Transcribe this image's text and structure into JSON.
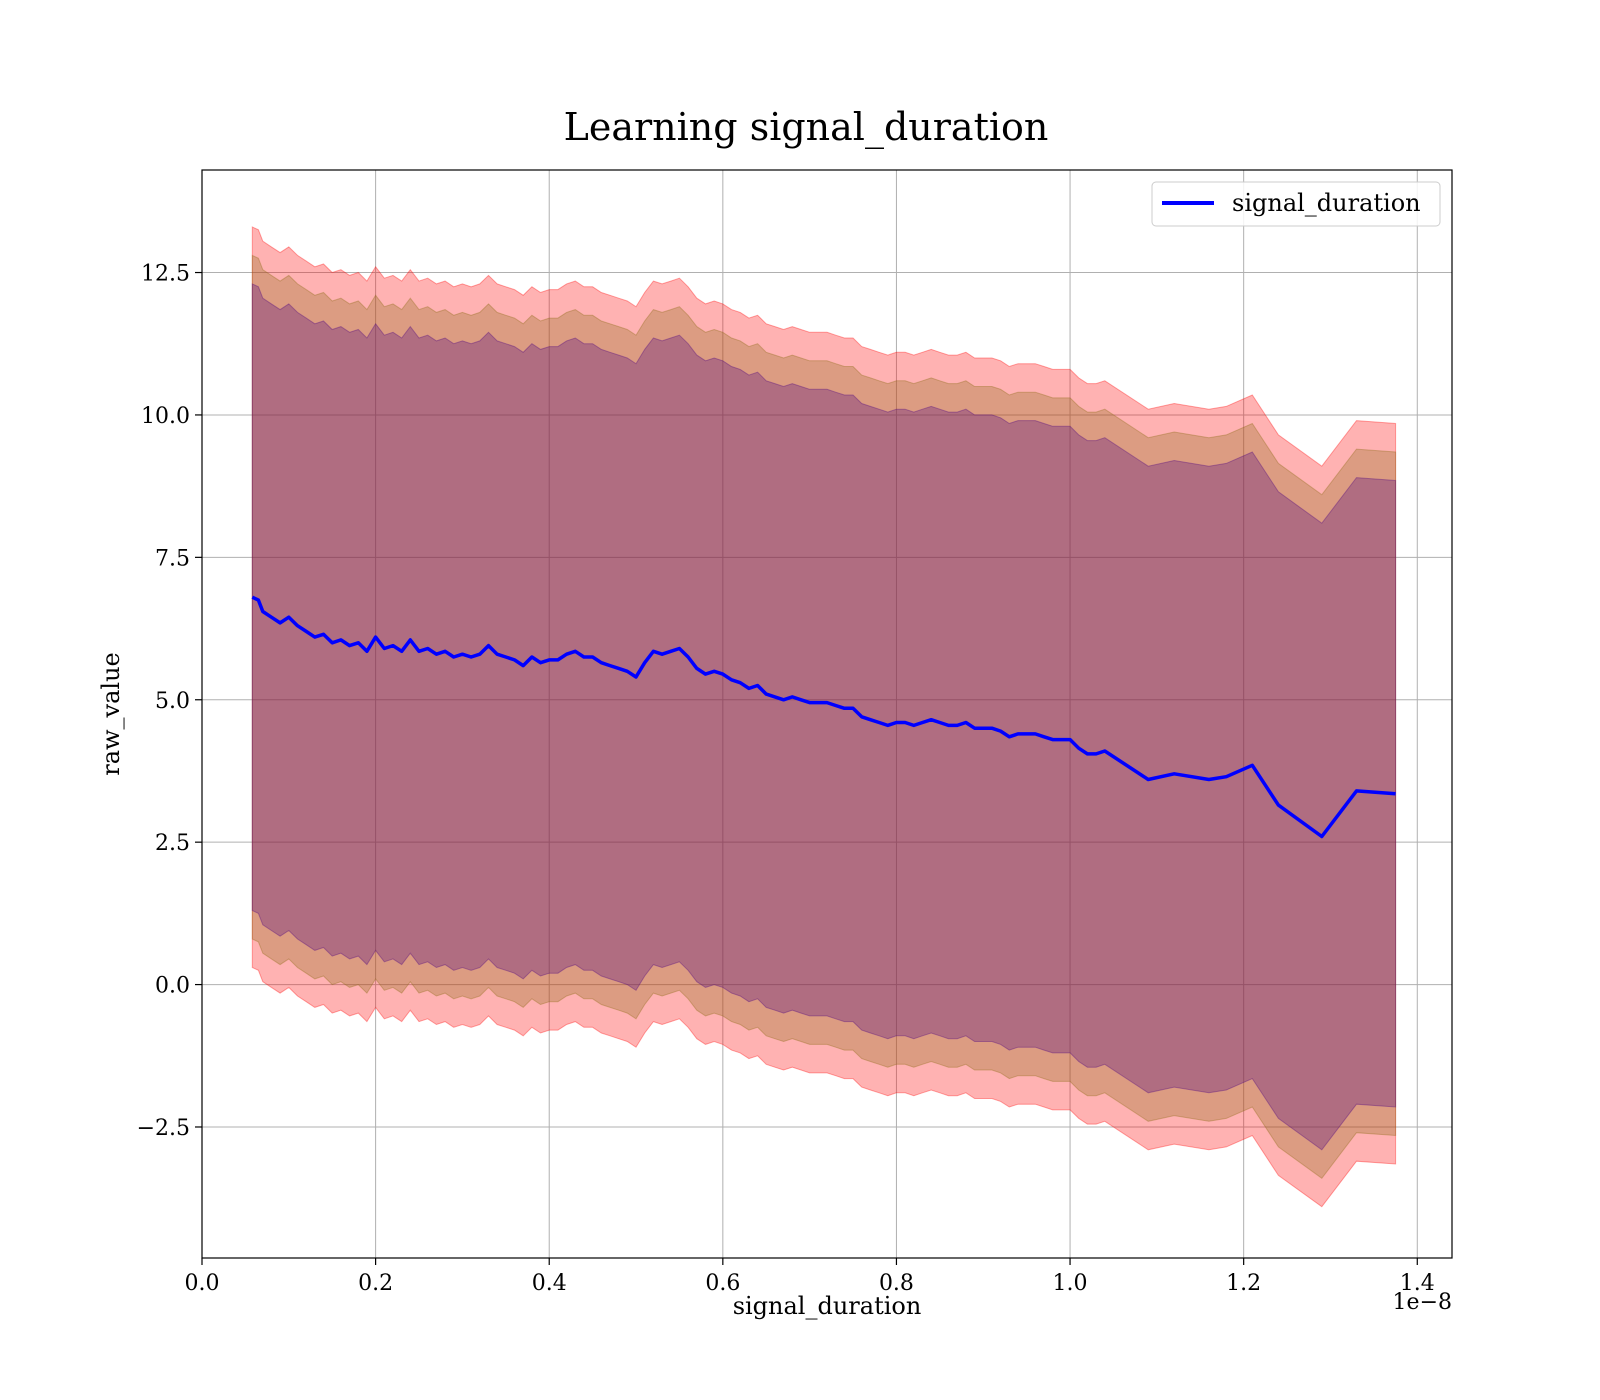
{
  "chart_data": {
    "type": "line",
    "title": "Learning signal_duration",
    "xlabel": "signal_duration",
    "ylabel": "raw_value",
    "x_offset_label": "1e−8",
    "xlim": [
      0.0,
      1.44
    ],
    "ylim": [
      -4.8,
      14.3
    ],
    "x_ticks": [
      0.0,
      0.2,
      0.4,
      0.6,
      0.8,
      1.0,
      1.2,
      1.4
    ],
    "x_tick_labels": [
      "0.0",
      "0.2",
      "0.4",
      "0.6",
      "0.8",
      "1.0",
      "1.2",
      "1.4"
    ],
    "y_ticks": [
      -2.5,
      0.0,
      2.5,
      5.0,
      7.5,
      10.0,
      12.5
    ],
    "y_tick_labels": [
      "−2.5",
      "0.0",
      "2.5",
      "5.0",
      "7.5",
      "10.0",
      "12.5"
    ],
    "grid": true,
    "legend": {
      "position": "top-right"
    },
    "bands": [
      {
        "offset": 6.5,
        "color": "#ff0000",
        "opacity": 0.3
      },
      {
        "offset": 6.0,
        "color": "#8b6914",
        "opacity": 0.3
      },
      {
        "offset": 5.5,
        "color": "#4b0082",
        "opacity": 0.3
      }
    ],
    "series": [
      {
        "name": "signal_duration",
        "color": "#0000ff",
        "x": [
          0.058,
          0.065,
          0.07,
          0.08,
          0.09,
          0.1,
          0.11,
          0.12,
          0.13,
          0.14,
          0.15,
          0.16,
          0.17,
          0.18,
          0.19,
          0.2,
          0.21,
          0.22,
          0.23,
          0.24,
          0.25,
          0.26,
          0.27,
          0.28,
          0.29,
          0.3,
          0.31,
          0.32,
          0.33,
          0.34,
          0.35,
          0.36,
          0.37,
          0.38,
          0.39,
          0.4,
          0.41,
          0.42,
          0.43,
          0.44,
          0.45,
          0.46,
          0.47,
          0.48,
          0.49,
          0.5,
          0.51,
          0.52,
          0.53,
          0.54,
          0.55,
          0.56,
          0.57,
          0.58,
          0.59,
          0.6,
          0.61,
          0.62,
          0.63,
          0.64,
          0.65,
          0.66,
          0.67,
          0.68,
          0.69,
          0.7,
          0.71,
          0.72,
          0.73,
          0.74,
          0.75,
          0.76,
          0.77,
          0.78,
          0.79,
          0.8,
          0.81,
          0.82,
          0.83,
          0.84,
          0.85,
          0.86,
          0.87,
          0.88,
          0.89,
          0.9,
          0.91,
          0.92,
          0.93,
          0.94,
          0.95,
          0.96,
          0.97,
          0.98,
          0.99,
          1.0,
          1.01,
          1.02,
          1.03,
          1.04,
          1.09,
          1.12,
          1.16,
          1.18,
          1.21,
          1.24,
          1.29,
          1.33,
          1.375
        ],
        "values": [
          6.8,
          6.75,
          6.55,
          6.45,
          6.35,
          6.45,
          6.3,
          6.2,
          6.1,
          6.15,
          6.0,
          6.05,
          5.95,
          6.0,
          5.85,
          6.1,
          5.9,
          5.95,
          5.85,
          6.05,
          5.85,
          5.9,
          5.8,
          5.85,
          5.75,
          5.8,
          5.75,
          5.8,
          5.95,
          5.8,
          5.75,
          5.7,
          5.6,
          5.75,
          5.65,
          5.7,
          5.7,
          5.8,
          5.85,
          5.75,
          5.75,
          5.65,
          5.6,
          5.55,
          5.5,
          5.4,
          5.65,
          5.85,
          5.8,
          5.85,
          5.9,
          5.75,
          5.55,
          5.45,
          5.5,
          5.45,
          5.35,
          5.3,
          5.2,
          5.25,
          5.1,
          5.05,
          5.0,
          5.05,
          5.0,
          4.95,
          4.95,
          4.95,
          4.9,
          4.85,
          4.85,
          4.7,
          4.65,
          4.6,
          4.55,
          4.6,
          4.6,
          4.55,
          4.6,
          4.65,
          4.6,
          4.55,
          4.55,
          4.6,
          4.5,
          4.5,
          4.5,
          4.45,
          4.35,
          4.4,
          4.4,
          4.4,
          4.35,
          4.3,
          4.3,
          4.3,
          4.15,
          4.05,
          4.05,
          4.1,
          3.6,
          3.7,
          3.6,
          3.65,
          3.85,
          3.15,
          2.6,
          3.4,
          3.35
        ]
      }
    ]
  }
}
